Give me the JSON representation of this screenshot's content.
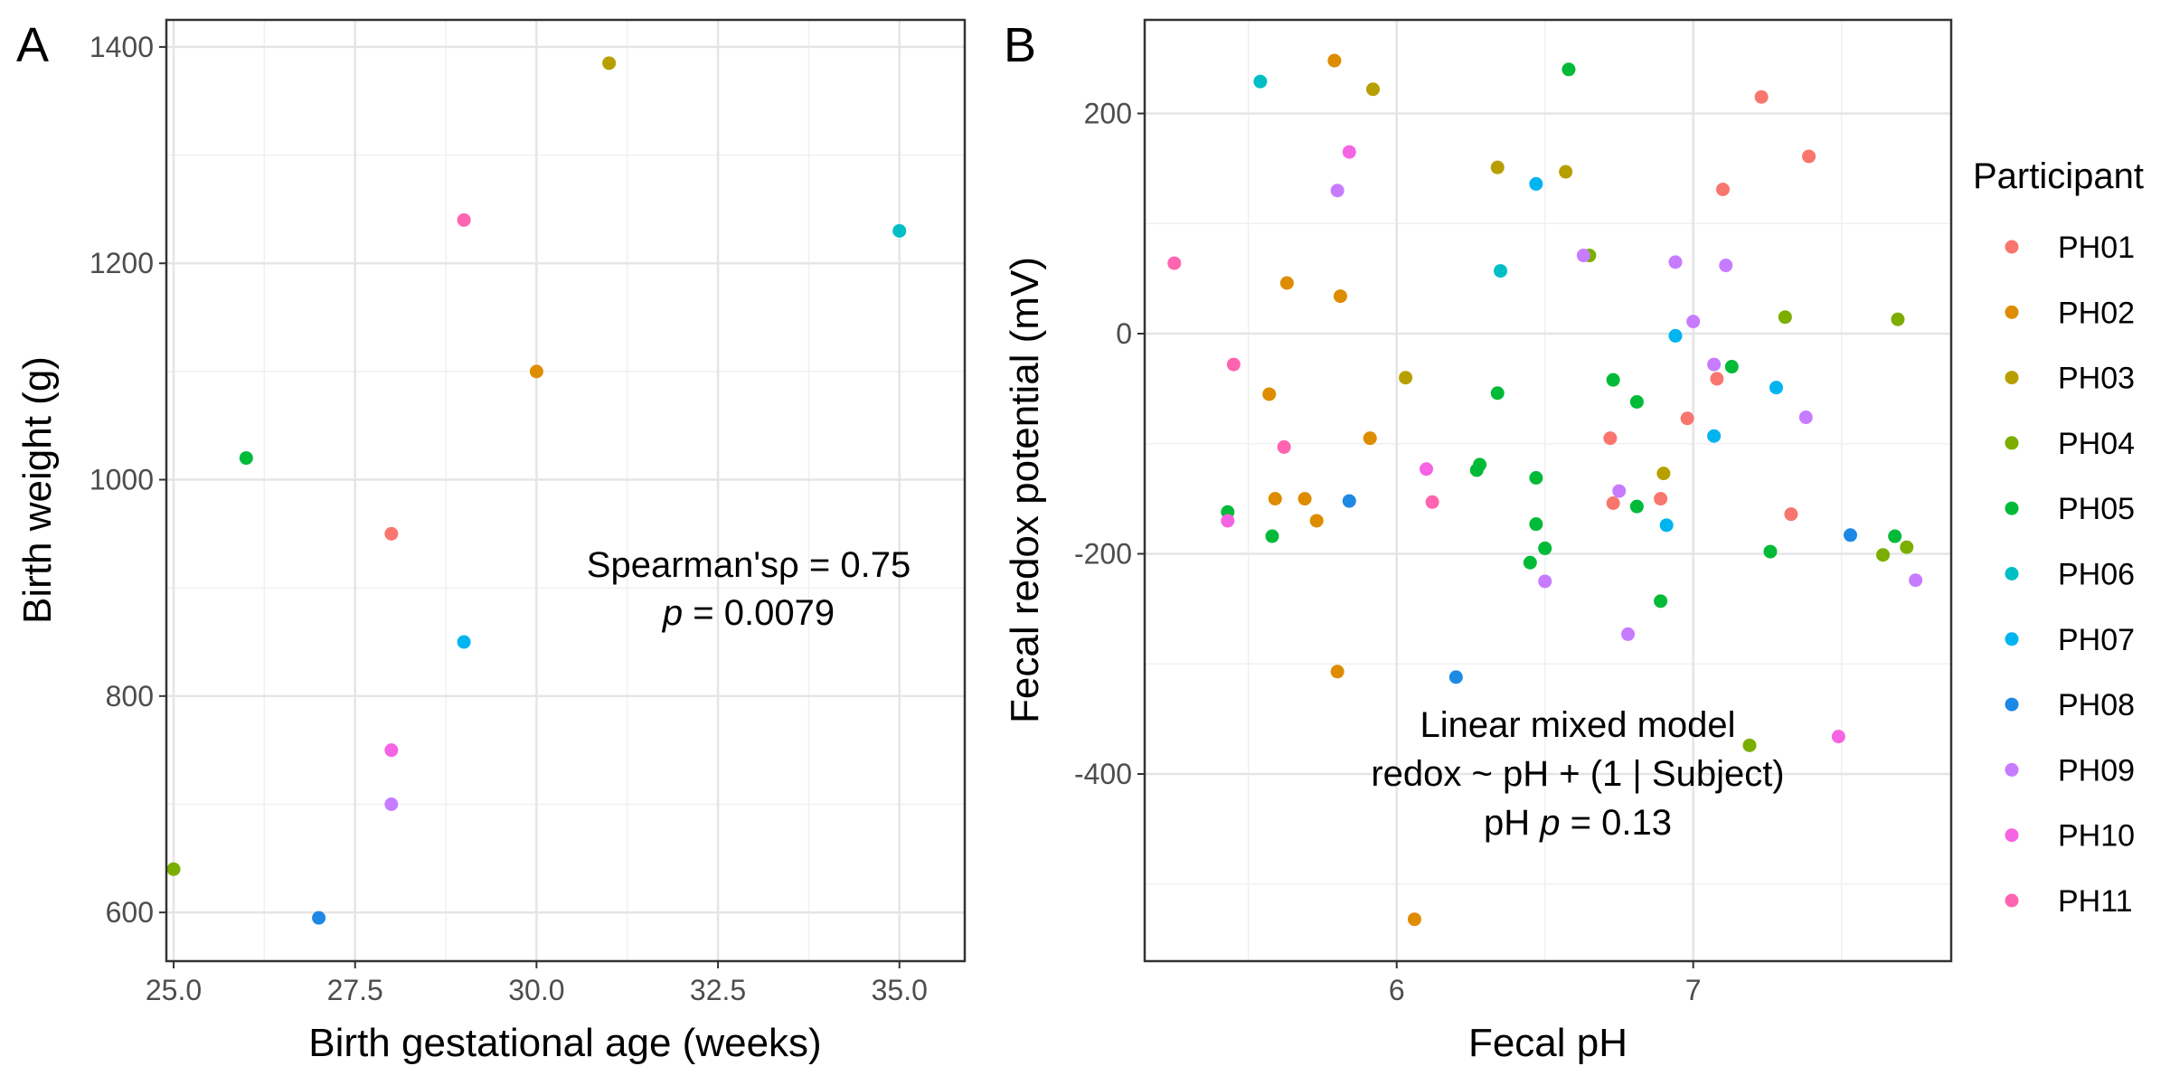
{
  "colors": {
    "PH01": "#F8766D",
    "PH02": "#DE8C00",
    "PH03": "#B79F00",
    "PH04": "#7CAE00",
    "PH05": "#00BA38",
    "PH06": "#00BFC4",
    "PH07": "#00B4F0",
    "PH08": "#1E88E5",
    "PH09": "#C77CFF",
    "PH10": "#F564E3",
    "PH11": "#FF64B0"
  },
  "legend": {
    "title": "Participant",
    "items": [
      "PH01",
      "PH02",
      "PH03",
      "PH04",
      "PH05",
      "PH06",
      "PH07",
      "PH08",
      "PH09",
      "PH10",
      "PH11"
    ]
  },
  "chart_data": [
    {
      "type": "scatter",
      "panel_tag": "A",
      "xlabel": "Birth gestational age (weeks)",
      "ylabel": "Birth weight (g)",
      "xlim": [
        24.9,
        35.9
      ],
      "ylim": [
        555,
        1425
      ],
      "x_ticks": [
        25.0,
        27.5,
        30.0,
        32.5,
        35.0
      ],
      "x_tick_labels": [
        "25.0",
        "27.5",
        "30.0",
        "32.5",
        "35.0"
      ],
      "y_ticks": [
        600,
        800,
        1000,
        1200,
        1400
      ],
      "y_tick_labels": [
        "600",
        "800",
        "1000",
        "1200",
        "1400"
      ],
      "grid": true,
      "annotation": {
        "line1_prefix": "Spearman's",
        "line1_symbol": "ρ",
        "line1_value": " = 0.75",
        "line2_prefix": "p",
        "line2_value": " = 0.0079"
      },
      "points": [
        {
          "participant": "PH01",
          "x": 28,
          "y": 950
        },
        {
          "participant": "PH02",
          "x": 30,
          "y": 1100
        },
        {
          "participant": "PH03",
          "x": 31,
          "y": 1385
        },
        {
          "participant": "PH04",
          "x": 25,
          "y": 640
        },
        {
          "participant": "PH05",
          "x": 26,
          "y": 1020
        },
        {
          "participant": "PH06",
          "x": 35,
          "y": 1230
        },
        {
          "participant": "PH07",
          "x": 29,
          "y": 850
        },
        {
          "participant": "PH08",
          "x": 27,
          "y": 595
        },
        {
          "participant": "PH09",
          "x": 28,
          "y": 700
        },
        {
          "participant": "PH10",
          "x": 28,
          "y": 750
        },
        {
          "participant": "PH11",
          "x": 29,
          "y": 1240
        }
      ]
    },
    {
      "type": "scatter",
      "panel_tag": "B",
      "xlabel": "Fecal pH",
      "ylabel": "Fecal redox potential (mV)",
      "xlim": [
        5.15,
        7.87
      ],
      "ylim": [
        -570,
        285
      ],
      "x_ticks": [
        6,
        7
      ],
      "x_tick_labels": [
        "6",
        "7"
      ],
      "y_ticks": [
        -400,
        -200,
        0,
        200
      ],
      "y_tick_labels": [
        "-400",
        "-200",
        "0",
        "200"
      ],
      "grid": true,
      "annotation": {
        "line1": "Linear mixed model",
        "line2": "redox ~ pH + (1 | Subject)",
        "line3_prefix": "pH ",
        "line3_p": "p",
        "line3_value": " = 0.13"
      },
      "points": [
        {
          "participant": "PH01",
          "x": 7.23,
          "y": 215
        },
        {
          "participant": "PH01",
          "x": 7.39,
          "y": 161
        },
        {
          "participant": "PH01",
          "x": 7.1,
          "y": 131
        },
        {
          "participant": "PH01",
          "x": 7.08,
          "y": -41
        },
        {
          "participant": "PH01",
          "x": 6.98,
          "y": -77
        },
        {
          "participant": "PH01",
          "x": 6.72,
          "y": -95
        },
        {
          "participant": "PH01",
          "x": 6.89,
          "y": -150
        },
        {
          "participant": "PH01",
          "x": 6.73,
          "y": -154
        },
        {
          "participant": "PH01",
          "x": 7.33,
          "y": -164
        },
        {
          "participant": "PH02",
          "x": 5.79,
          "y": 248
        },
        {
          "participant": "PH02",
          "x": 5.63,
          "y": 46
        },
        {
          "participant": "PH02",
          "x": 5.81,
          "y": 34
        },
        {
          "participant": "PH02",
          "x": 5.57,
          "y": -55
        },
        {
          "participant": "PH02",
          "x": 5.91,
          "y": -95
        },
        {
          "participant": "PH02",
          "x": 5.59,
          "y": -150
        },
        {
          "participant": "PH02",
          "x": 5.69,
          "y": -150
        },
        {
          "participant": "PH02",
          "x": 5.73,
          "y": -170
        },
        {
          "participant": "PH02",
          "x": 5.8,
          "y": -307
        },
        {
          "participant": "PH02",
          "x": 6.06,
          "y": -532
        },
        {
          "participant": "PH03",
          "x": 5.92,
          "y": 222
        },
        {
          "participant": "PH03",
          "x": 6.34,
          "y": 151
        },
        {
          "participant": "PH03",
          "x": 6.57,
          "y": 147
        },
        {
          "participant": "PH03",
          "x": 6.03,
          "y": -40
        },
        {
          "participant": "PH03",
          "x": 6.9,
          "y": -127
        },
        {
          "participant": "PH04",
          "x": 6.65,
          "y": 71
        },
        {
          "participant": "PH04",
          "x": 7.31,
          "y": 15
        },
        {
          "participant": "PH04",
          "x": 7.69,
          "y": 13
        },
        {
          "participant": "PH04",
          "x": 7.72,
          "y": -194
        },
        {
          "participant": "PH04",
          "x": 7.64,
          "y": -201
        },
        {
          "participant": "PH04",
          "x": 7.19,
          "y": -374
        },
        {
          "participant": "PH05",
          "x": 6.58,
          "y": 240
        },
        {
          "participant": "PH05",
          "x": 7.13,
          "y": -30
        },
        {
          "participant": "PH05",
          "x": 6.73,
          "y": -42
        },
        {
          "participant": "PH05",
          "x": 6.34,
          "y": -54
        },
        {
          "participant": "PH05",
          "x": 6.81,
          "y": -62
        },
        {
          "participant": "PH05",
          "x": 6.28,
          "y": -119
        },
        {
          "participant": "PH05",
          "x": 6.27,
          "y": -124
        },
        {
          "participant": "PH05",
          "x": 6.47,
          "y": -131
        },
        {
          "participant": "PH05",
          "x": 6.81,
          "y": -157
        },
        {
          "participant": "PH05",
          "x": 5.43,
          "y": -162
        },
        {
          "participant": "PH05",
          "x": 6.47,
          "y": -173
        },
        {
          "participant": "PH05",
          "x": 5.58,
          "y": -184
        },
        {
          "participant": "PH05",
          "x": 7.68,
          "y": -184
        },
        {
          "participant": "PH05",
          "x": 6.5,
          "y": -195
        },
        {
          "participant": "PH05",
          "x": 7.26,
          "y": -198
        },
        {
          "participant": "PH05",
          "x": 6.45,
          "y": -208
        },
        {
          "participant": "PH05",
          "x": 6.89,
          "y": -243
        },
        {
          "participant": "PH06",
          "x": 5.54,
          "y": 229
        },
        {
          "participant": "PH06",
          "x": 6.35,
          "y": 57
        },
        {
          "participant": "PH07",
          "x": 6.47,
          "y": 136
        },
        {
          "participant": "PH07",
          "x": 6.94,
          "y": -2
        },
        {
          "participant": "PH07",
          "x": 7.28,
          "y": -49
        },
        {
          "participant": "PH07",
          "x": 7.07,
          "y": -93
        },
        {
          "participant": "PH07",
          "x": 6.91,
          "y": -174
        },
        {
          "participant": "PH08",
          "x": 5.84,
          "y": -152
        },
        {
          "participant": "PH08",
          "x": 7.53,
          "y": -183
        },
        {
          "participant": "PH08",
          "x": 6.2,
          "y": -312
        },
        {
          "participant": "PH09",
          "x": 5.8,
          "y": 130
        },
        {
          "participant": "PH09",
          "x": 6.63,
          "y": 71
        },
        {
          "participant": "PH09",
          "x": 6.94,
          "y": 65
        },
        {
          "participant": "PH09",
          "x": 7.11,
          "y": 62
        },
        {
          "participant": "PH09",
          "x": 7.0,
          "y": 11
        },
        {
          "participant": "PH09",
          "x": 7.07,
          "y": -28
        },
        {
          "participant": "PH09",
          "x": 7.38,
          "y": -76
        },
        {
          "participant": "PH09",
          "x": 6.75,
          "y": -143
        },
        {
          "participant": "PH09",
          "x": 7.75,
          "y": -224
        },
        {
          "participant": "PH09",
          "x": 6.5,
          "y": -225
        },
        {
          "participant": "PH09",
          "x": 6.78,
          "y": -273
        },
        {
          "participant": "PH10",
          "x": 5.84,
          "y": 165
        },
        {
          "participant": "PH10",
          "x": 6.1,
          "y": -123
        },
        {
          "participant": "PH10",
          "x": 5.43,
          "y": -170
        },
        {
          "participant": "PH10",
          "x": 7.49,
          "y": -366
        },
        {
          "participant": "PH11",
          "x": 5.25,
          "y": 64
        },
        {
          "participant": "PH11",
          "x": 5.45,
          "y": -28
        },
        {
          "participant": "PH11",
          "x": 5.62,
          "y": -103
        },
        {
          "participant": "PH11",
          "x": 6.12,
          "y": -153
        }
      ]
    }
  ]
}
